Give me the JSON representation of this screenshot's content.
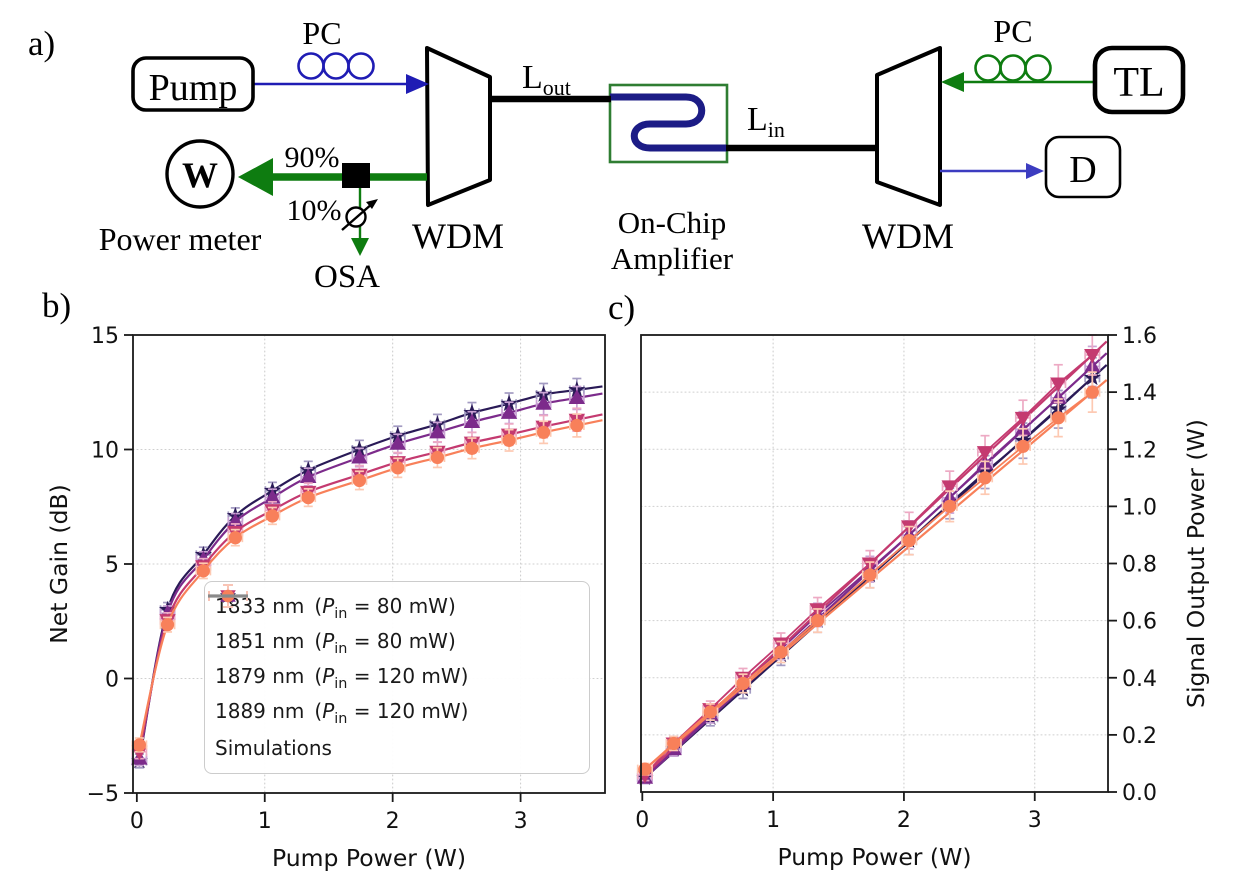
{
  "panels": {
    "a": "a)",
    "b": "b)",
    "c": "c)"
  },
  "diagram": {
    "pump": "Pump",
    "pc_left": "PC",
    "pc_right": "PC",
    "wdm_left": "WDM",
    "wdm_right": "WDM",
    "l_out_main": "L",
    "l_out_sub": "out",
    "l_in_main": "L",
    "l_in_sub": "in",
    "chip_line1": "On-Chip",
    "chip_line2": "Amplifier",
    "tl": "TL",
    "d": "D",
    "w": "W",
    "power_meter": "Power meter",
    "tap_high": "90%",
    "tap_low": "10%",
    "osa": "OSA",
    "colors": {
      "pump_path": "#1f1cb4",
      "signal_path": "#0e7c10",
      "chip_outline": "#2f7d32",
      "waveguide": "#1c1c86",
      "device_text": "#555555",
      "fiber": "#000000"
    }
  },
  "chart_data": [
    {
      "id": "net-gain",
      "type": "scatter",
      "xlabel": "Pump Power (W)",
      "ylabel": "Net Gain (dB)",
      "ylabel_side": "left",
      "xlim": [
        -0.03,
        3.66
      ],
      "ylim": [
        -5,
        15
      ],
      "xticks": [
        0,
        1,
        2,
        3
      ],
      "xtick_labels": [
        "0",
        "1",
        "2",
        "3"
      ],
      "yticks": [
        -5,
        0,
        5,
        10,
        15
      ],
      "ytick_labels": [
        "−5",
        "0",
        "5",
        "10",
        "15"
      ],
      "grid": true,
      "sim_style": "smooth",
      "show_data_line": false,
      "x": [
        0.02,
        0.24,
        0.52,
        0.77,
        1.06,
        1.34,
        1.74,
        2.04,
        2.35,
        2.62,
        2.91,
        3.18,
        3.44
      ],
      "xerr": 0.055,
      "yerr_range": [
        0.3,
        0.5
      ],
      "series": [
        {
          "wavelength": "1833 nm",
          "pin": "80 mW",
          "marker": "star",
          "color": "#2a1a57",
          "err_color": "#a39bc2",
          "values": [
            -3.6,
            3.0,
            5.4,
            7.1,
            8.2,
            9.1,
            10.0,
            10.6,
            11.1,
            11.6,
            12.0,
            12.4,
            12.6
          ]
        },
        {
          "wavelength": "1851 nm",
          "pin": "80 mW",
          "marker": "triangle-up",
          "color": "#7c2b8b",
          "err_color": "#caa2d4",
          "values": [
            -3.5,
            2.85,
            5.2,
            6.85,
            7.9,
            8.8,
            9.65,
            10.25,
            10.75,
            11.2,
            11.6,
            12.0,
            12.25
          ]
        },
        {
          "wavelength": "1879 nm",
          "pin": "120 mW",
          "marker": "triangle-down",
          "color": "#c43a70",
          "err_color": "#edaac4",
          "values": [
            -3.2,
            2.55,
            4.9,
            6.4,
            7.35,
            8.15,
            8.9,
            9.45,
            9.9,
            10.3,
            10.65,
            11.0,
            11.3
          ]
        },
        {
          "wavelength": "1889 nm",
          "pin": "120 mW",
          "marker": "circle",
          "color": "#f8805a",
          "err_color": "#fdc9b2",
          "values": [
            -2.9,
            2.35,
            4.7,
            6.15,
            7.1,
            7.9,
            8.65,
            9.2,
            9.65,
            10.05,
            10.4,
            10.75,
            11.05
          ]
        }
      ],
      "legend": {
        "open": "(",
        "pin_symbol": "P",
        "pin_sub": "in",
        "equals": "=",
        "close": ")",
        "sim_label": "Simulations",
        "sim_color": "#8a8a8a"
      }
    },
    {
      "id": "signal-output",
      "type": "scatter",
      "xlabel": "Pump Power (W)",
      "ylabel": "Signal Output Power (W)",
      "ylabel_side": "right",
      "xlim": [
        -0.01,
        3.56
      ],
      "ylim": [
        0,
        1.6
      ],
      "xticks": [
        0,
        1,
        2,
        3
      ],
      "xtick_labels": [
        "0",
        "1",
        "2",
        "3"
      ],
      "yticks": [
        0,
        0.2,
        0.4,
        0.6,
        0.8,
        1.0,
        1.2,
        1.4,
        1.6
      ],
      "ytick_labels": [
        "0.0",
        "0.2",
        "0.4",
        "0.6",
        "0.8",
        "1.0",
        "1.2",
        "1.4",
        "1.6"
      ],
      "grid": true,
      "sim_style": "straight",
      "show_data_line": true,
      "x": [
        0.02,
        0.24,
        0.52,
        0.77,
        1.06,
        1.34,
        1.74,
        2.04,
        2.35,
        2.62,
        2.91,
        3.18,
        3.44
      ],
      "xerr": 0.055,
      "yerr_range": [
        0.02,
        0.07
      ],
      "series": [
        {
          "wavelength": "1833 nm",
          "pin": "80 mW",
          "marker": "star",
          "color": "#2a1a57",
          "err_color": "#a39bc2",
          "values": [
            0.05,
            0.15,
            0.26,
            0.36,
            0.48,
            0.6,
            0.76,
            0.88,
            1.01,
            1.12,
            1.23,
            1.34,
            1.45
          ]
        },
        {
          "wavelength": "1851 nm",
          "pin": "80 mW",
          "marker": "triangle-up",
          "color": "#7c2b8b",
          "err_color": "#caa2d4",
          "values": [
            0.05,
            0.15,
            0.27,
            0.38,
            0.5,
            0.62,
            0.78,
            0.9,
            1.03,
            1.15,
            1.27,
            1.38,
            1.49
          ]
        },
        {
          "wavelength": "1879 nm",
          "pin": "120 mW",
          "marker": "triangle-down",
          "color": "#c43a70",
          "err_color": "#edaac4",
          "values": [
            0.06,
            0.17,
            0.29,
            0.4,
            0.52,
            0.64,
            0.8,
            0.93,
            1.07,
            1.19,
            1.31,
            1.43,
            1.53
          ]
        },
        {
          "wavelength": "1889 nm",
          "pin": "120 mW",
          "marker": "circle",
          "color": "#f8805a",
          "err_color": "#fdc9b2",
          "values": [
            0.08,
            0.17,
            0.28,
            0.38,
            0.49,
            0.6,
            0.76,
            0.88,
            1.0,
            1.1,
            1.21,
            1.31,
            1.4
          ]
        }
      ]
    }
  ]
}
